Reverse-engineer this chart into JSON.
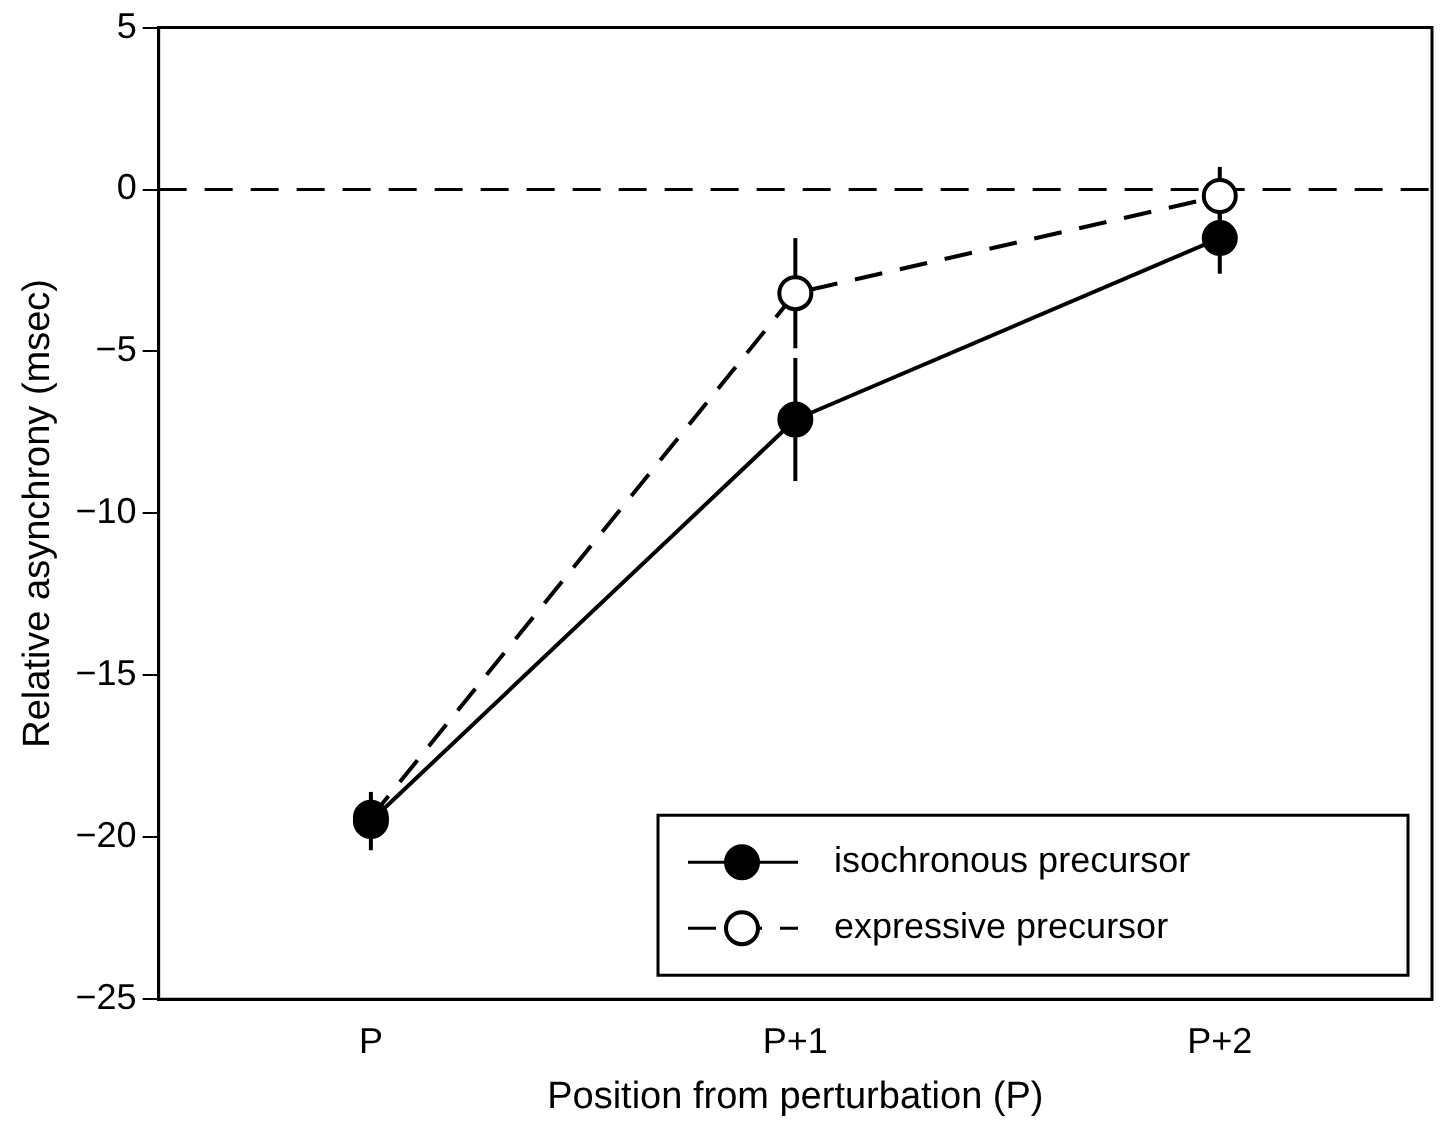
{
  "chart_data": {
    "type": "line",
    "xlabel": "Position from perturbation (P)",
    "ylabel": "Relative asynchrony (msec)",
    "categories": [
      "P",
      "P+1",
      "P+2"
    ],
    "series": [
      {
        "name": "isochronous precursor",
        "color": "#000000",
        "values": [
          -19.5,
          -7.1,
          -1.5
        ],
        "errors": [
          0.9,
          1.9,
          1.1
        ],
        "line_style": "solid"
      },
      {
        "name": "expressive precursor",
        "color": "#000000",
        "values": [
          -19.4,
          -3.2,
          -0.2
        ],
        "errors": [
          null,
          1.7,
          0.9
        ],
        "line_style": "dashed"
      }
    ],
    "ylim": [
      -25,
      5
    ],
    "yticks": [
      -25,
      -20,
      -15,
      -10,
      -5,
      0,
      5
    ],
    "ref_lines": [
      {
        "axis": "y",
        "value": 0,
        "line_style": "dashed",
        "color": "#000000"
      }
    ],
    "marker": "circle",
    "legend": "bottom right",
    "grid": false
  }
}
